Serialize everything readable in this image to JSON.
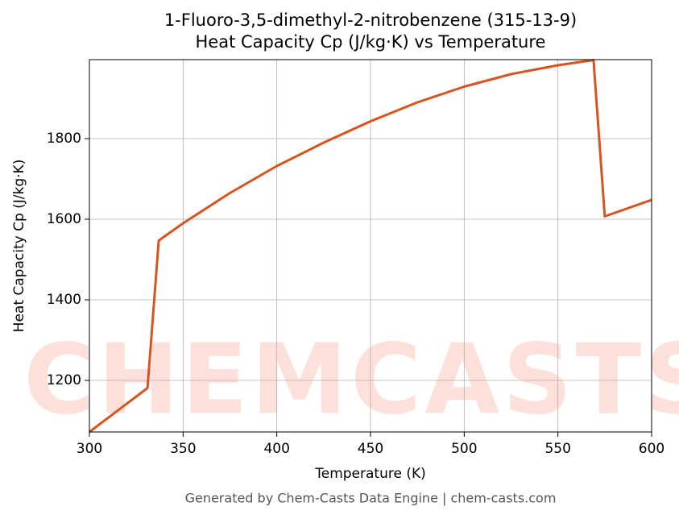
{
  "chart_data": {
    "type": "line",
    "title": "1-Fluoro-3,5-dimethyl-2-nitrobenzene (315-13-9)",
    "subtitle": "Heat Capacity Cp (J/kg·K) vs Temperature",
    "x_label": "Temperature (K)",
    "y_label": "Heat Capacity Cp (J/kg·K)",
    "footer": "Generated by Chem-Casts Data Engine | chem-casts.com",
    "watermark": "CHEMCASTS",
    "grid": true,
    "xlim": [
      300,
      600
    ],
    "xticks": [
      300,
      350,
      400,
      450,
      500,
      550,
      600
    ],
    "ylim": [
      1072,
      1996
    ],
    "yticks": [
      1200,
      1400,
      1600,
      1800
    ],
    "x": [
      300,
      331,
      337,
      350,
      375,
      400,
      425,
      450,
      475,
      500,
      525,
      550,
      569,
      575,
      600
    ],
    "series": [
      {
        "name": "Cp",
        "color": "#d9531e",
        "values": [
          1072,
          1181,
          1547,
          1590,
          1665,
          1732,
          1790,
          1843,
          1890,
          1929,
          1960,
          1982,
          1995,
          1607,
          1648
        ]
      }
    ]
  }
}
